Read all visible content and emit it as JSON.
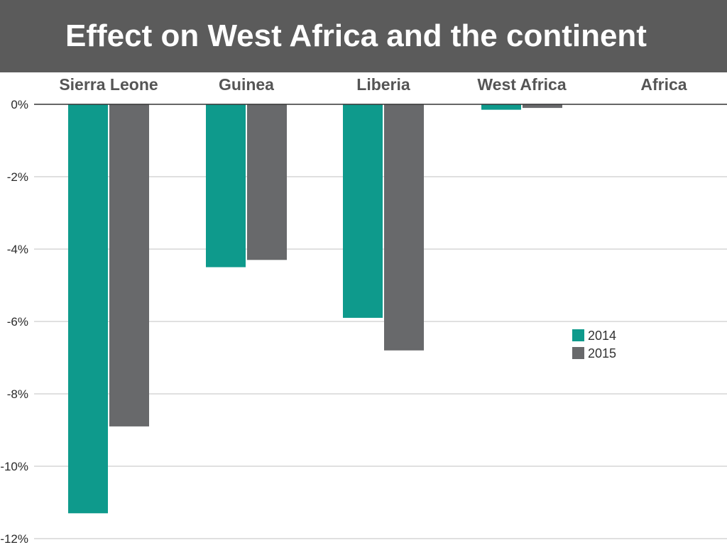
{
  "page": {
    "title": "Effect on West Africa and the continent"
  },
  "colors": {
    "title_bar": "#5b5b5b",
    "series_2014": "#0e9a8c",
    "series_2015": "#68696b",
    "gridline": "#d6d6d6",
    "zero_line": "#333333"
  },
  "chart_data": {
    "type": "bar",
    "title": "",
    "xlabel": "",
    "ylabel": "",
    "categories": [
      "Sierra Leone",
      "Guinea",
      "Liberia",
      "West Africa",
      "Africa"
    ],
    "series": [
      {
        "name": "2014",
        "color": "#0e9a8c",
        "values": [
          -11.3,
          -4.5,
          -5.9,
          -0.15,
          0
        ]
      },
      {
        "name": "2015",
        "color": "#68696b",
        "values": [
          -8.9,
          -4.3,
          -6.8,
          -0.1,
          0
        ]
      }
    ],
    "ylim": [
      -12,
      0
    ],
    "yticks": [
      0,
      -2,
      -4,
      -6,
      -8,
      -10,
      -12
    ],
    "ytick_labels": [
      "0%",
      "-2%",
      "-4%",
      "-6%",
      "-8%",
      "-10%",
      "-12%"
    ],
    "category_labels_position": "top",
    "grid": true,
    "legend_position": "right-middle"
  }
}
